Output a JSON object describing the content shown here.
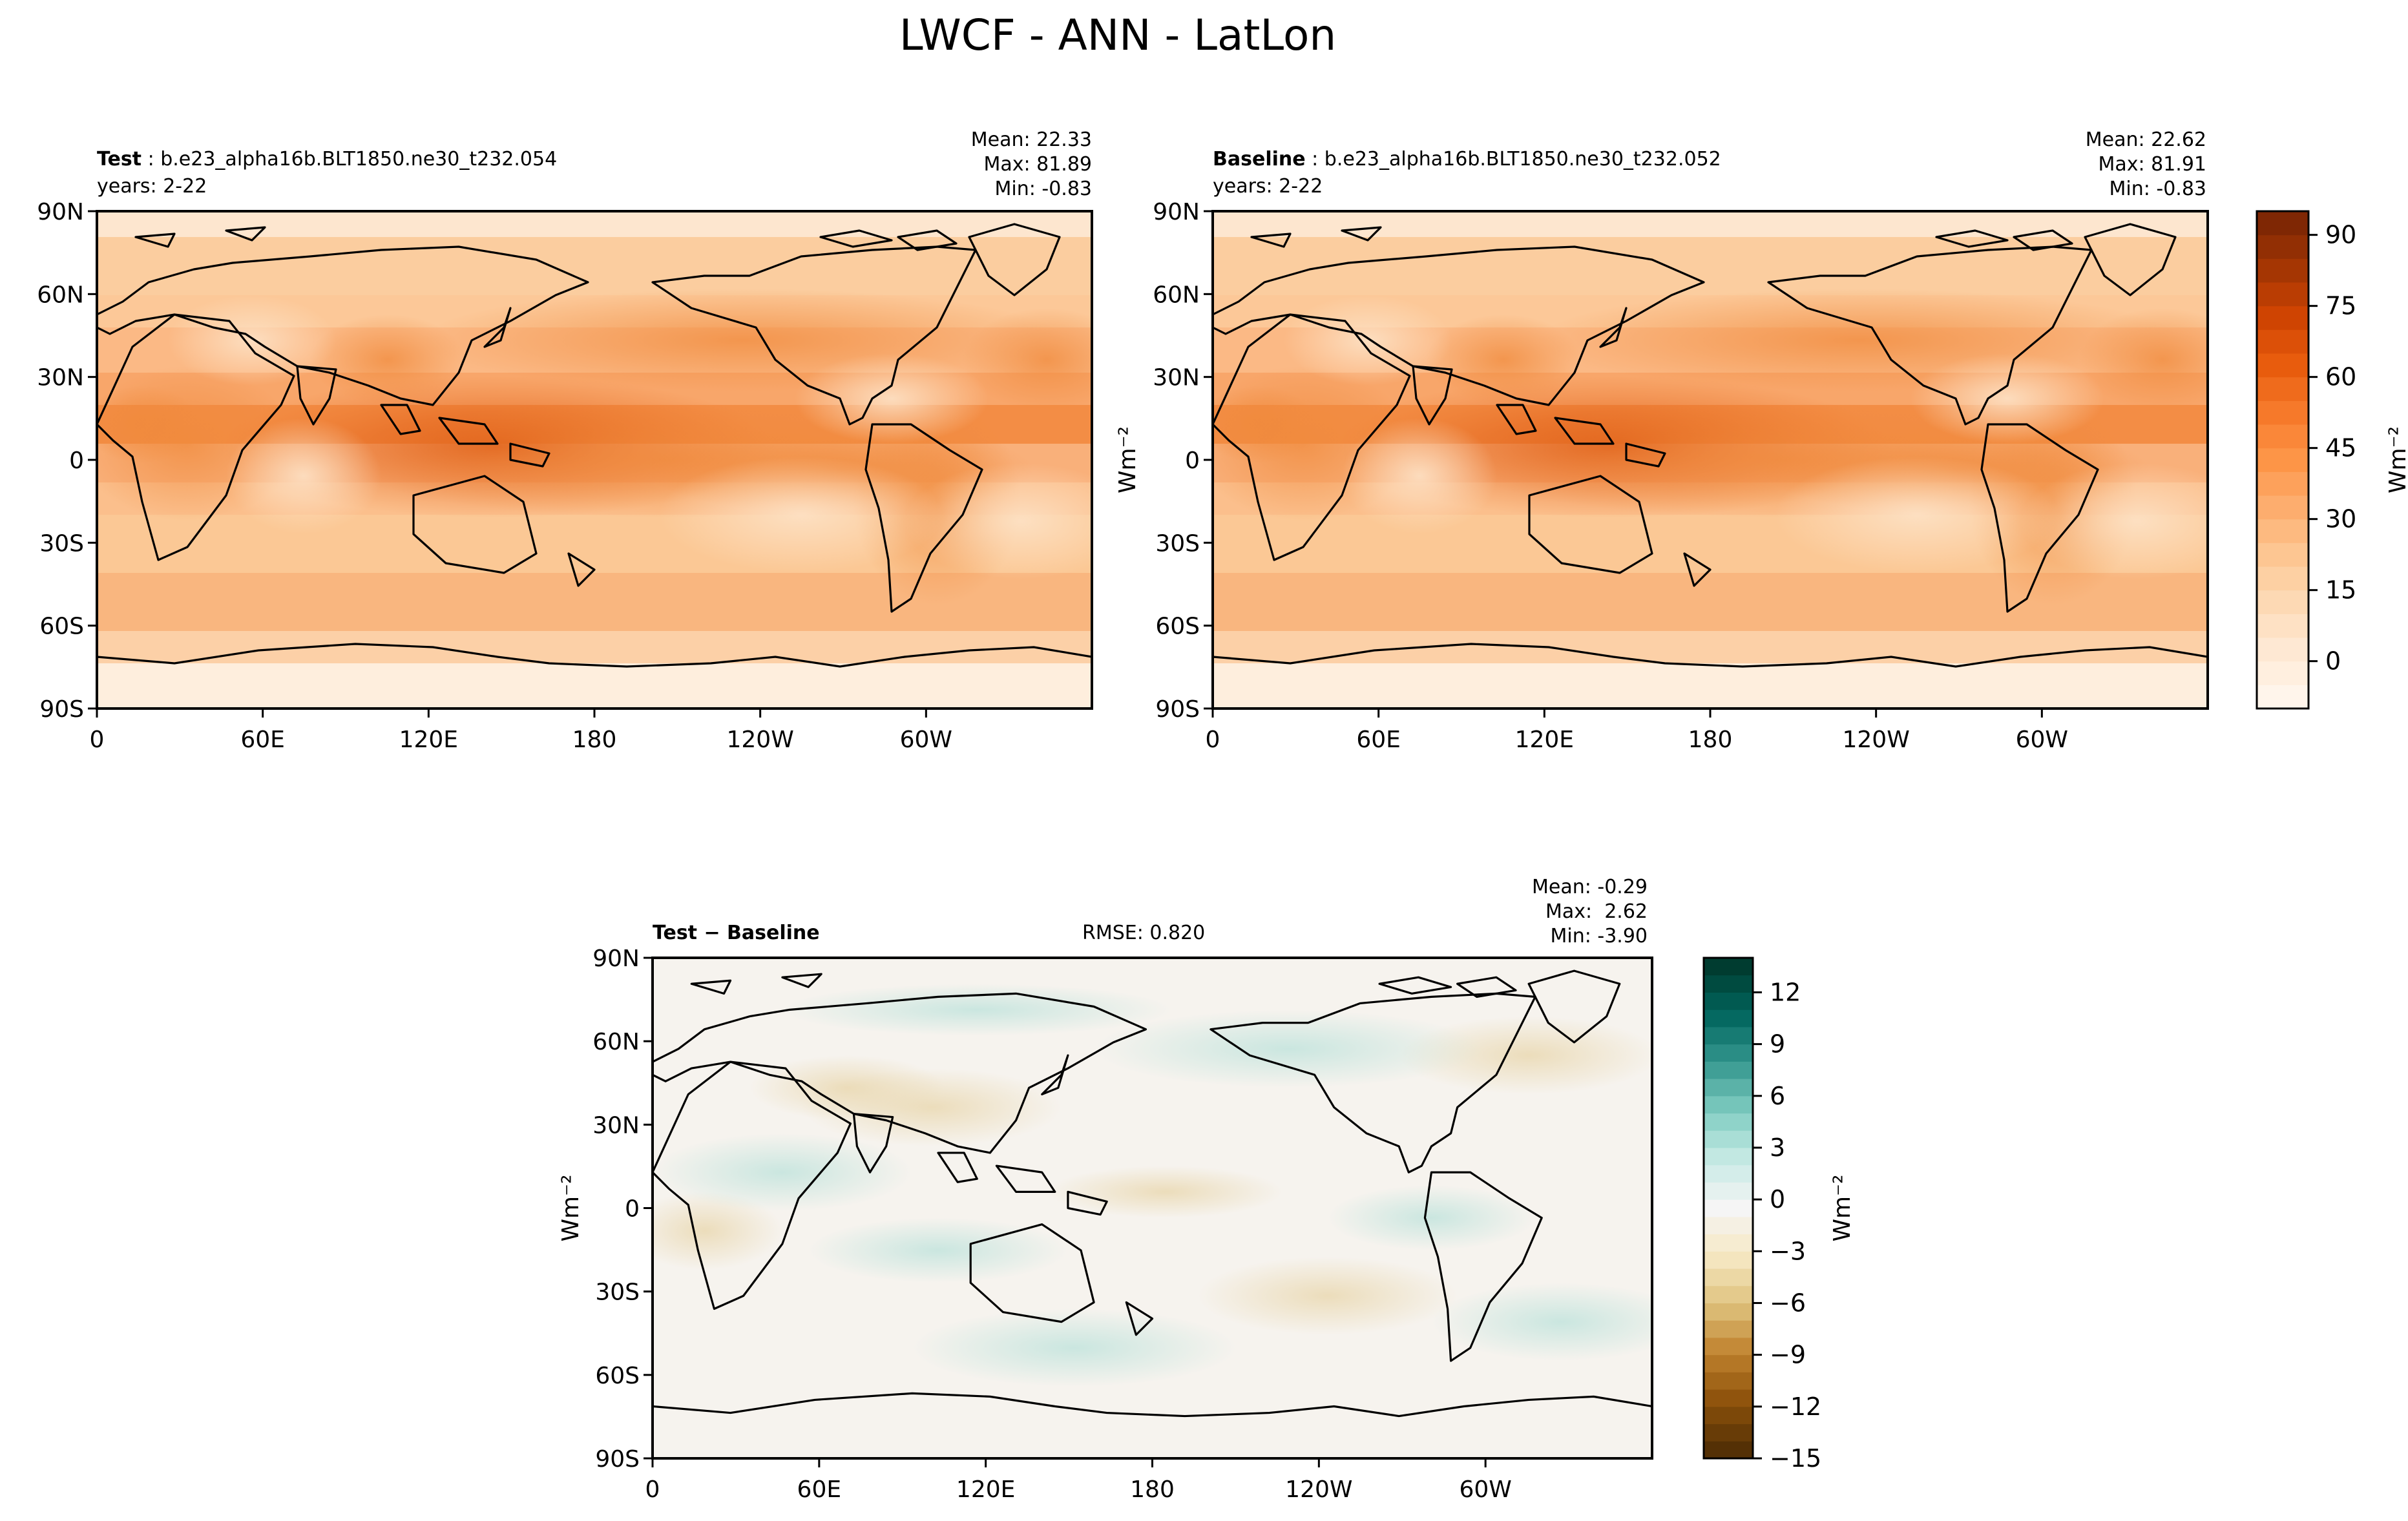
{
  "title": "LWCF - ANN - LatLon",
  "panels": {
    "test": {
      "label": "Test",
      "case": "b.e23_alpha16b.BLT1850.ne30_t232.054",
      "years": "years: 2-22",
      "mean": "Mean: 22.33",
      "max": "Max: 81.89",
      "min": "Min: -0.83"
    },
    "baseline": {
      "label": "Baseline",
      "case": "b.e23_alpha16b.BLT1850.ne30_t232.052",
      "years": "years: 2-22",
      "mean": "Mean: 22.62",
      "max": "Max: 81.91",
      "min": "Min: -0.83"
    },
    "diff": {
      "label": "Test − Baseline",
      "rmse": "RMSE: 0.820",
      "mean": "Mean: -0.29",
      "max": "Max:  2.62",
      "min": "Min: -3.90"
    }
  },
  "colors": {
    "oranges": [
      "#fff5eb",
      "#fee8d3",
      "#fdd9b4",
      "#fdc692",
      "#fdad6e",
      "#fd9547",
      "#f6792a",
      "#e85c0d",
      "#cf4402",
      "#a53603",
      "#7f2704"
    ],
    "brbg": [
      "#543005",
      "#8c510a",
      "#bf812d",
      "#dfc27d",
      "#f6e8c3",
      "#f5f5f5",
      "#c7eae5",
      "#80cdc1",
      "#35978f",
      "#01665e",
      "#003c30"
    ],
    "land_outline": "#000000"
  },
  "chart_data": [
    {
      "type": "heatmap",
      "name": "Test",
      "title": "Test : b.e23_alpha16b.BLT1850.ne30_t232.054",
      "xlabel": "",
      "ylabel": "",
      "xticks": [
        "0",
        "60E",
        "120E",
        "180",
        "120W",
        "60W"
      ],
      "yticks": [
        "90N",
        "60N",
        "30N",
        "0",
        "30S",
        "60S",
        "90S"
      ],
      "xlim": [
        0,
        360
      ],
      "ylim": [
        -90,
        90
      ],
      "stats": {
        "mean": 22.33,
        "max": 81.89,
        "min": -0.83
      }
    },
    {
      "type": "heatmap",
      "name": "Baseline",
      "title": "Baseline : b.e23_alpha16b.BLT1850.ne30_t232.052",
      "xticks": [
        "0",
        "60E",
        "120E",
        "180",
        "120W",
        "60W"
      ],
      "yticks": [
        "90N",
        "60N",
        "30N",
        "0",
        "30S",
        "60S",
        "90S"
      ],
      "xlim": [
        0,
        360
      ],
      "ylim": [
        -90,
        90
      ],
      "stats": {
        "mean": 22.62,
        "max": 81.91,
        "min": -0.83
      },
      "colorbar": {
        "label": "Wm⁻²",
        "ticks": [
          "0",
          "15",
          "30",
          "45",
          "60",
          "75",
          "90"
        ],
        "range": [
          -10,
          95
        ]
      }
    },
    {
      "type": "heatmap",
      "name": "Test − Baseline",
      "xticks": [
        "0",
        "60E",
        "120E",
        "180",
        "120W",
        "60W"
      ],
      "yticks": [
        "90N",
        "60N",
        "30N",
        "0",
        "30S",
        "60S",
        "90S"
      ],
      "xlim": [
        0,
        360
      ],
      "ylim": [
        -90,
        90
      ],
      "ylabel": "Wm⁻²",
      "stats": {
        "mean": -0.29,
        "max": 2.62,
        "min": -3.9,
        "rmse": 0.82
      },
      "colorbar": {
        "label": "Wm⁻²",
        "ticks": [
          "−15",
          "−12",
          "−9",
          "−6",
          "−3",
          "0",
          "3",
          "6",
          "9",
          "12"
        ],
        "range": [
          -15,
          14
        ]
      }
    }
  ],
  "labels": {
    "wm2": "Wm⁻²",
    "xticks": [
      "0",
      "60E",
      "120E",
      "180",
      "120W",
      "60W"
    ],
    "yticks": [
      "90N",
      "60N",
      "30N",
      "0",
      "30S",
      "60S",
      "90S"
    ],
    "cbar1_ticks": [
      "0",
      "15",
      "30",
      "45",
      "60",
      "75",
      "90"
    ],
    "cbar2_ticks": [
      "−15",
      "−12",
      "−9",
      "−6",
      "−3",
      "0",
      "3",
      "6",
      "9",
      "12"
    ]
  }
}
